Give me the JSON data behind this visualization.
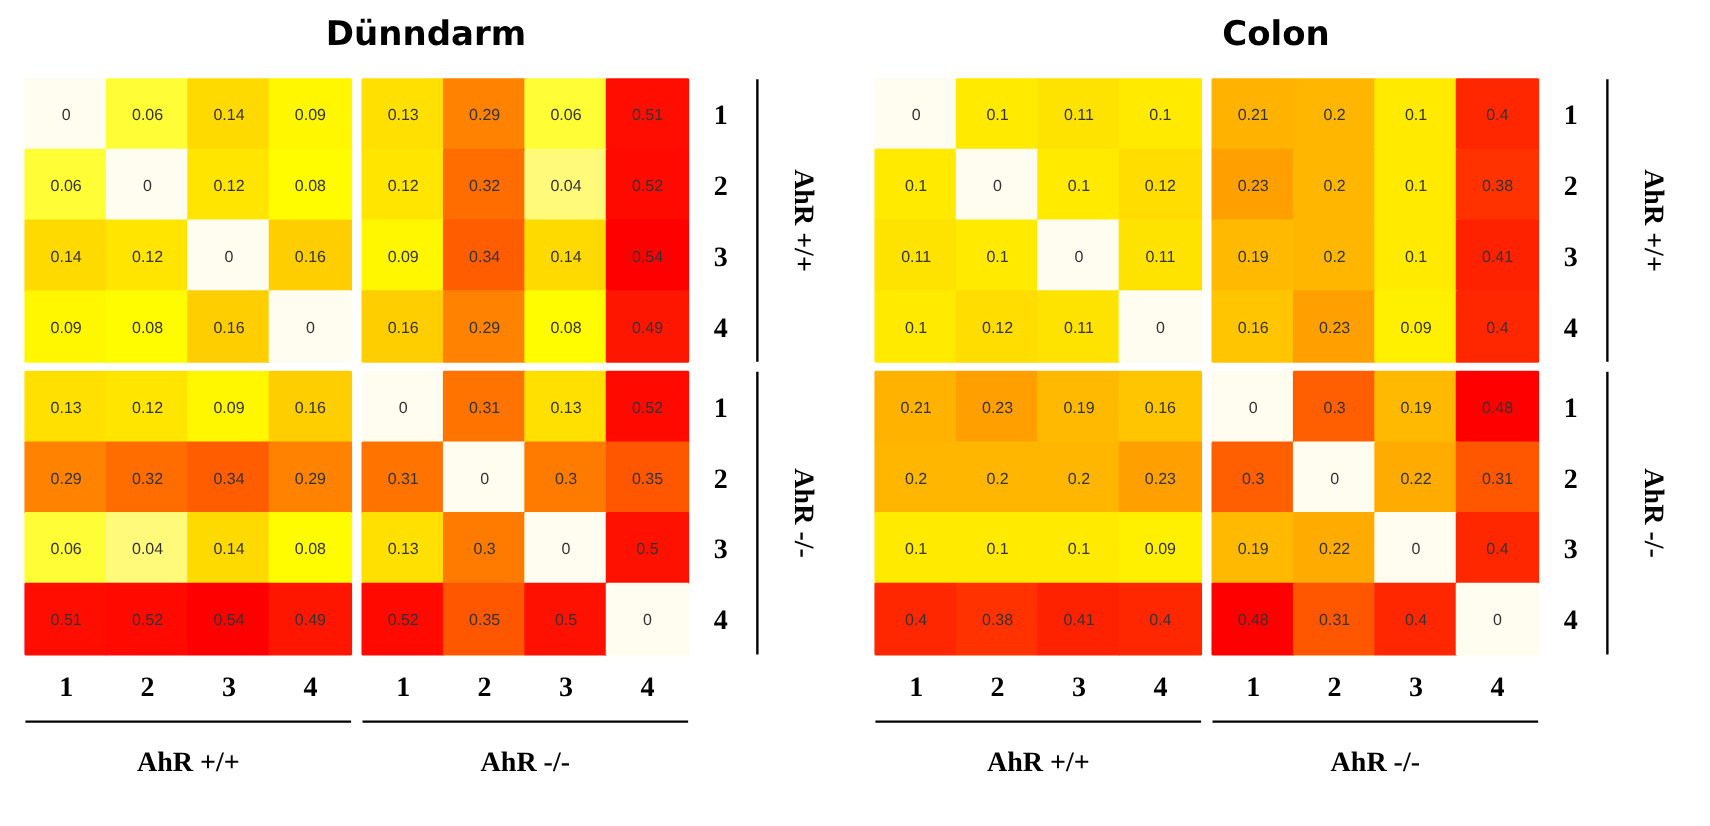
{
  "chart_data": [
    {
      "type": "heatmap",
      "title": "Dünndarm",
      "data_labels": true,
      "categories": [
        "1",
        "2",
        "3",
        "4",
        "1",
        "2",
        "3",
        "4"
      ],
      "y_categories": [
        "1",
        "2",
        "3",
        "4",
        "1",
        "2",
        "3",
        "4"
      ],
      "annotations": [
        "AhR +/+",
        "AhR -/-",
        "AhR +/+",
        "AhR -/-"
      ],
      "cells": [
        [
          0,
          0.06,
          0.14,
          0.09,
          0.13,
          0.29,
          0.06,
          0.51
        ],
        [
          0.06,
          0,
          0.12,
          0.08,
          0.12,
          0.32,
          0.04,
          0.52
        ],
        [
          0.14,
          0.12,
          0,
          0.16,
          0.09,
          0.34,
          0.14,
          0.54
        ],
        [
          0.09,
          0.08,
          0.16,
          0,
          0.16,
          0.29,
          0.08,
          0.49
        ],
        [
          0.13,
          0.12,
          0.09,
          0.16,
          0,
          0.31,
          0.13,
          0.52
        ],
        [
          0.29,
          0.32,
          0.34,
          0.29,
          0.31,
          0,
          0.3,
          0.35
        ],
        [
          0.06,
          0.04,
          0.14,
          0.08,
          0.13,
          0.3,
          0,
          0.5
        ],
        [
          0.51,
          0.52,
          0.54,
          0.49,
          0.52,
          0.35,
          0.5,
          0
        ]
      ]
    },
    {
      "type": "heatmap",
      "title": "Colon",
      "data_labels": true,
      "categories": [
        "1",
        "2",
        "3",
        "4",
        "1",
        "2",
        "3",
        "4"
      ],
      "y_categories": [
        "1",
        "2",
        "3",
        "4",
        "1",
        "2",
        "3",
        "4"
      ],
      "annotations": [
        "AhR +/+",
        "AhR -/-",
        "AhR +/+",
        "AhR -/-"
      ],
      "cells": [
        [
          0,
          0.1,
          0.11,
          0.1,
          0.21,
          0.2,
          0.1,
          0.4
        ],
        [
          0.1,
          0,
          0.1,
          0.12,
          0.23,
          0.2,
          0.1,
          0.38
        ],
        [
          0.11,
          0.1,
          0,
          0.11,
          0.19,
          0.2,
          0.1,
          0.41
        ],
        [
          0.1,
          0.12,
          0.11,
          0,
          0.16,
          0.23,
          0.09,
          0.4
        ],
        [
          0.21,
          0.23,
          0.19,
          0.16,
          0,
          0.3,
          0.19,
          0.48
        ],
        [
          0.2,
          0.2,
          0.2,
          0.23,
          0.3,
          0,
          0.22,
          0.31
        ],
        [
          0.1,
          0.1,
          0.1,
          0.09,
          0.19,
          0.22,
          0,
          0.4
        ],
        [
          0.4,
          0.38,
          0.41,
          0.4,
          0.48,
          0.31,
          0.4,
          0
        ]
      ]
    }
  ]
}
